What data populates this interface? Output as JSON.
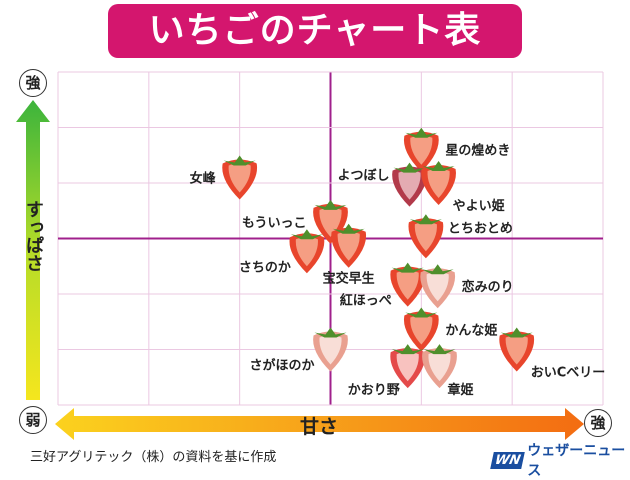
{
  "title": "いちごのチャート表",
  "source": "三好アグリテック（株）の資料を基に作成",
  "logo": {
    "mark": "WN",
    "text": "ウェザーニュース"
  },
  "colors": {
    "banner": "#d4166e",
    "axis_center": "#a0208c",
    "grid": "#ebc8e2"
  },
  "chart_data": {
    "type": "scatter",
    "title": "いちごのチャート表",
    "xlabel": "甘さ",
    "ylabel": "すっぱさ",
    "x_strong_label": "強",
    "y_strong_label": "強",
    "y_weak_label": "弱",
    "xlim": [
      -3,
      3
    ],
    "ylim": [
      -3,
      3
    ],
    "grid": true,
    "points": [
      {
        "name": "女峰",
        "x": -1.0,
        "y": 1.1,
        "label_side": "left",
        "tone": "red"
      },
      {
        "name": "星の煌めき",
        "x": 1.0,
        "y": 1.6,
        "label_side": "right",
        "tone": "red"
      },
      {
        "name": "よつぼし",
        "x": 0.87,
        "y": 0.97,
        "label_side": "left-top",
        "tone": "dark"
      },
      {
        "name": "やよい姫",
        "x": 1.19,
        "y": 1.0,
        "label_side": "right-below",
        "tone": "red"
      },
      {
        "name": "もういっこ",
        "x": 0.0,
        "y": 0.3,
        "label_side": "left",
        "tone": "red"
      },
      {
        "name": "とちおとめ",
        "x": 1.05,
        "y": 0.04,
        "label_side": "right-top",
        "tone": "red"
      },
      {
        "name": "さちのか",
        "x": -0.26,
        "y": -0.23,
        "label_side": "left-below",
        "tone": "red"
      },
      {
        "name": "宝交早生",
        "x": 0.2,
        "y": -0.13,
        "label_side": "below",
        "tone": "red"
      },
      {
        "name": "紅ほっぺ",
        "x": 0.85,
        "y": -0.83,
        "label_side": "left-below",
        "tone": "red"
      },
      {
        "name": "恋みのり",
        "x": 1.18,
        "y": -0.86,
        "label_side": "right",
        "tone": "pale"
      },
      {
        "name": "かんな姫",
        "x": 1.0,
        "y": -1.64,
        "label_side": "right",
        "tone": "red"
      },
      {
        "name": "さがほのか",
        "x": 0.0,
        "y": -2.0,
        "label_side": "left-below",
        "tone": "pale"
      },
      {
        "name": "かおり野",
        "x": 0.85,
        "y": -2.3,
        "label_side": "below-left",
        "tone": "pink"
      },
      {
        "name": "章姫",
        "x": 1.2,
        "y": -2.3,
        "label_side": "below-right",
        "tone": "pale"
      },
      {
        "name": "おいCベリー",
        "x": 2.05,
        "y": -2.0,
        "label_side": "right-below",
        "tone": "red"
      }
    ]
  }
}
